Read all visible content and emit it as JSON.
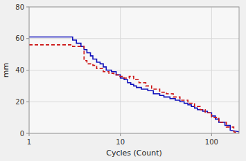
{
  "chart_data": {
    "type": "line",
    "xlabel": "Cycles (Count)",
    "ylabel": "mm",
    "log": "x",
    "grid": true,
    "xlim": [
      1,
      200
    ],
    "ylim": [
      0,
      80
    ],
    "xticks": [
      1,
      10,
      100
    ],
    "yticks": [
      0,
      20,
      40,
      60,
      80
    ],
    "series": [
      {
        "color": "#1111bb",
        "line_style": "solid",
        "x": [
          1,
          3.0,
          3.0,
          3.3,
          3.3,
          3.7,
          3.7,
          4.0,
          4.0,
          4.3,
          4.3,
          4.7,
          4.7,
          5.0,
          5.0,
          5.5,
          5.5,
          6.0,
          6.0,
          6.5,
          6.5,
          7.0,
          7.0,
          8.0,
          8.0,
          9.0,
          9.0,
          10.0,
          10.0,
          11.0,
          11.0,
          12.0,
          12.0,
          13.0,
          13.0,
          14.0,
          14.0,
          15.0,
          15.0,
          17.0,
          17.0,
          20.0,
          20.0,
          23.0,
          23.0,
          27.0,
          27.0,
          30.0,
          30.0,
          35.0,
          35.0,
          40.0,
          40.0,
          45.0,
          45.0,
          50.0,
          50.0,
          55.0,
          55.0,
          60.0,
          60.0,
          65.0,
          65.0,
          70.0,
          70.0,
          80.0,
          80.0,
          90.0,
          90.0,
          100.0,
          100.0,
          110.0,
          110.0,
          120.0,
          120.0,
          140.0,
          140.0,
          160.0,
          160.0,
          200.0
        ],
        "values": [
          61,
          61,
          59,
          59,
          57,
          57,
          55,
          55,
          53,
          53,
          51,
          51,
          49,
          49,
          47,
          47,
          45,
          45,
          44,
          44,
          42,
          42,
          40,
          40,
          39,
          39,
          37,
          37,
          35,
          35,
          34,
          34,
          32,
          32,
          31,
          31,
          30,
          30,
          29,
          29,
          28,
          28,
          27,
          27,
          25,
          25,
          24,
          24,
          23,
          23,
          22,
          22,
          21,
          21,
          20,
          20,
          19,
          19,
          18,
          18,
          17,
          17,
          16,
          16,
          15,
          15,
          14,
          14,
          13,
          13,
          11,
          11,
          9,
          9,
          7,
          7,
          5,
          5,
          2,
          1
        ]
      },
      {
        "color": "#cc1111",
        "line_style": "dashed",
        "x": [
          1,
          3.0,
          3.0,
          4.0,
          4.0,
          4.3,
          4.3,
          5.0,
          5.0,
          5.5,
          5.5,
          6.5,
          6.5,
          7.5,
          7.5,
          8.5,
          8.5,
          9.5,
          9.5,
          11.0,
          11.0,
          12.5,
          12.5,
          14.0,
          14.0,
          16.0,
          16.0,
          19.0,
          19.0,
          22.0,
          22.0,
          27.0,
          27.0,
          32.0,
          32.0,
          38.0,
          38.0,
          45.0,
          45.0,
          55.0,
          55.0,
          65.0,
          65.0,
          75.0,
          75.0,
          85.0,
          85.0,
          100.0,
          100.0,
          120.0,
          120.0,
          145.0,
          145.0,
          175.0,
          175.0,
          200.0
        ],
        "values": [
          56,
          56,
          55,
          55,
          46,
          46,
          44,
          44,
          43,
          43,
          41,
          41,
          39,
          39,
          38,
          38,
          37,
          37,
          36,
          36,
          35,
          35,
          36,
          36,
          34,
          34,
          32,
          32,
          30,
          30,
          28,
          28,
          26,
          26,
          25,
          25,
          23,
          23,
          21,
          21,
          19,
          19,
          17,
          17,
          15,
          15,
          13,
          13,
          10,
          10,
          7,
          7,
          4,
          4,
          1,
          0
        ]
      }
    ]
  }
}
